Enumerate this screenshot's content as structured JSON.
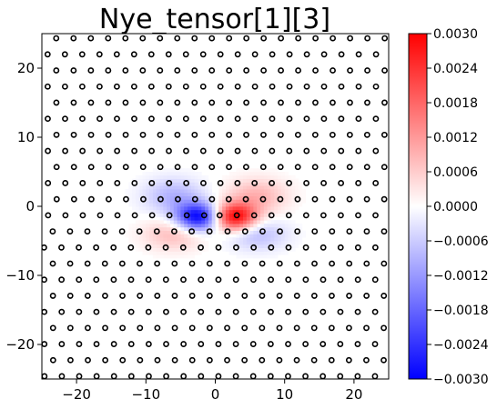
{
  "chart_data": {
    "type": "heatmap",
    "title": "Nye_tensor[1][3]",
    "xlabel": "",
    "ylabel": "",
    "xlim": [
      -25,
      25
    ],
    "ylim": [
      -25,
      25
    ],
    "x_ticks": [
      -20,
      -10,
      0,
      10,
      20
    ],
    "y_ticks": [
      -20,
      -10,
      0,
      10,
      20
    ],
    "x_tick_labels": [
      "−20",
      "−10",
      "0",
      "10",
      "20"
    ],
    "y_tick_labels": [
      "−20",
      "−10",
      "0",
      "10",
      "20"
    ],
    "grid": false,
    "colormap": "bwr",
    "colormap_colors": {
      "min": "#0000ff",
      "mid": "#ffffff",
      "max": "#ff0000"
    },
    "colorbar": {
      "placement": "right",
      "vmin": -0.003,
      "vmax": 0.003,
      "ticks": [
        0.003,
        0.0024,
        0.0018,
        0.0012,
        0.0006,
        0.0,
        -0.0006,
        -0.0012,
        -0.0018,
        -0.0024,
        -0.003
      ],
      "tick_labels": [
        "0.0030",
        "0.0024",
        "0.0018",
        "0.0012",
        "0.0006",
        "0.0000",
        "−0.0006",
        "−0.0012",
        "−0.0018",
        "−0.0024",
        "−0.0030"
      ]
    },
    "features": [
      {
        "x": -2.5,
        "y": -1.5,
        "value": -0.003,
        "sx": 2.2,
        "sy": 1.4
      },
      {
        "x": 2.8,
        "y": -1.5,
        "value": 0.003,
        "sx": 2.2,
        "sy": 1.4
      },
      {
        "x": -6,
        "y": 1.5,
        "value": -0.0009,
        "sx": 3.0,
        "sy": 1.8
      },
      {
        "x": 6,
        "y": 1.5,
        "value": 0.0009,
        "sx": 3.0,
        "sy": 1.8
      },
      {
        "x": -6,
        "y": -4,
        "value": 0.0008,
        "sx": 3.0,
        "sy": 1.6
      },
      {
        "x": 6,
        "y": -4,
        "value": -0.0008,
        "sx": 3.0,
        "sy": 1.6
      }
    ],
    "atoms": {
      "marker": "circle",
      "x_spacing": 2.5,
      "y_spacing": 2.33,
      "x_row_offset": 1.25,
      "y_min": -24.6,
      "y_max": 24.6,
      "x_min": -24.4,
      "x_max": 24.4,
      "core": {
        "x": 0,
        "y": -1.5,
        "width": 10
      },
      "marker_color": "#000000"
    }
  }
}
